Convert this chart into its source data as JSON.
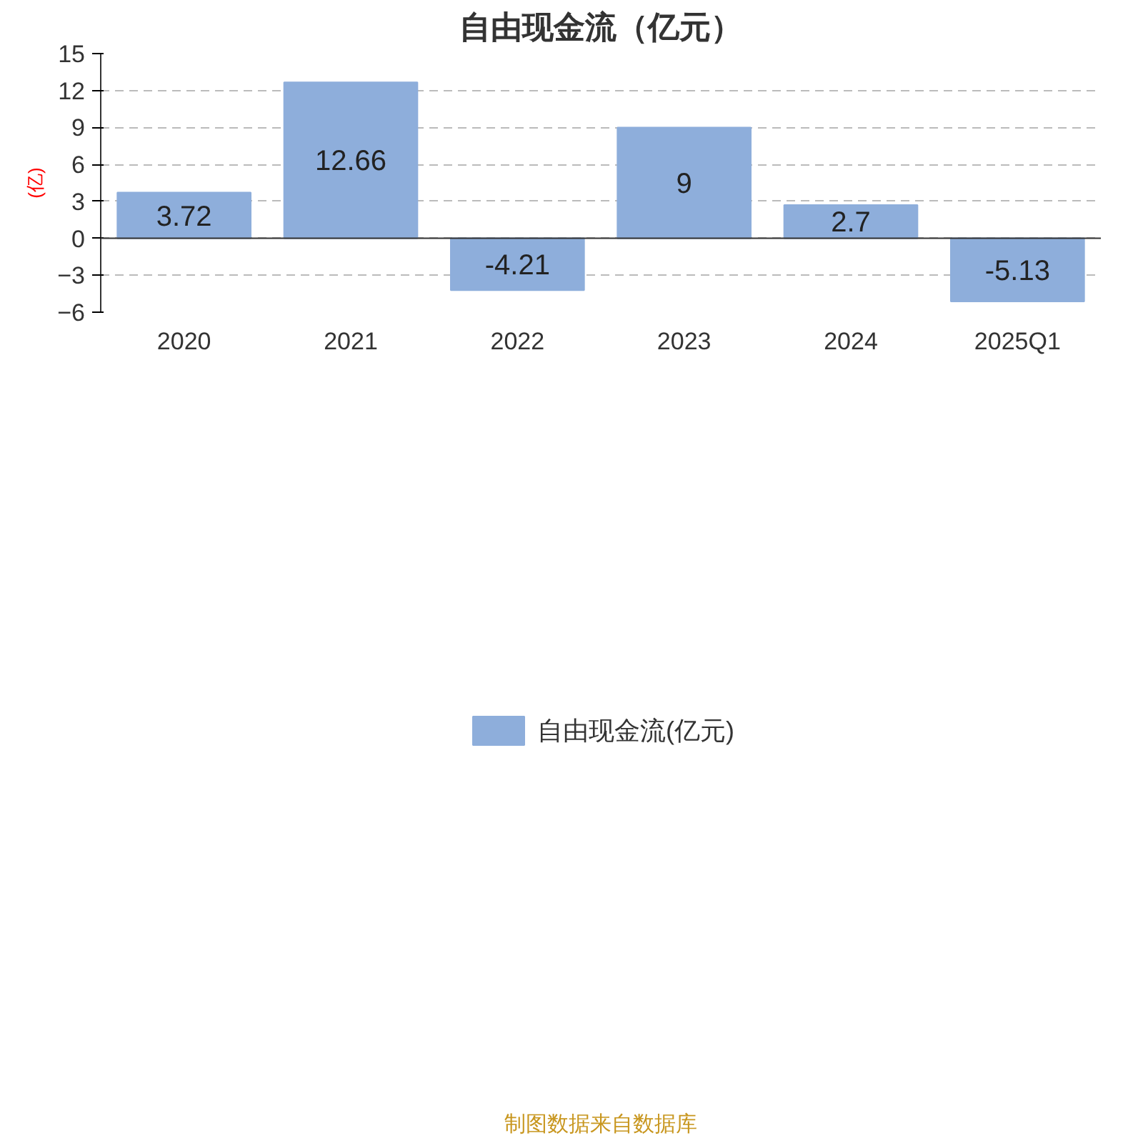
{
  "chart_data": {
    "type": "bar",
    "title": "自由现金流（亿元）",
    "ylabel": "(亿)",
    "categories": [
      "2020",
      "2021",
      "2022",
      "2023",
      "2024",
      "2025Q1"
    ],
    "series": [
      {
        "name": "自由现金流(亿元)",
        "color": "#8eaedb",
        "values": [
          3.72,
          12.66,
          -4.21,
          9,
          2.7,
          -5.13
        ]
      }
    ],
    "ylim": [
      -6,
      15
    ],
    "yticks": [
      -6,
      -3,
      0,
      3,
      6,
      9,
      12,
      15
    ],
    "grid": "y",
    "legend": "bottom",
    "data_labels": true,
    "annotations": [
      "制图数据来自数据库"
    ]
  }
}
